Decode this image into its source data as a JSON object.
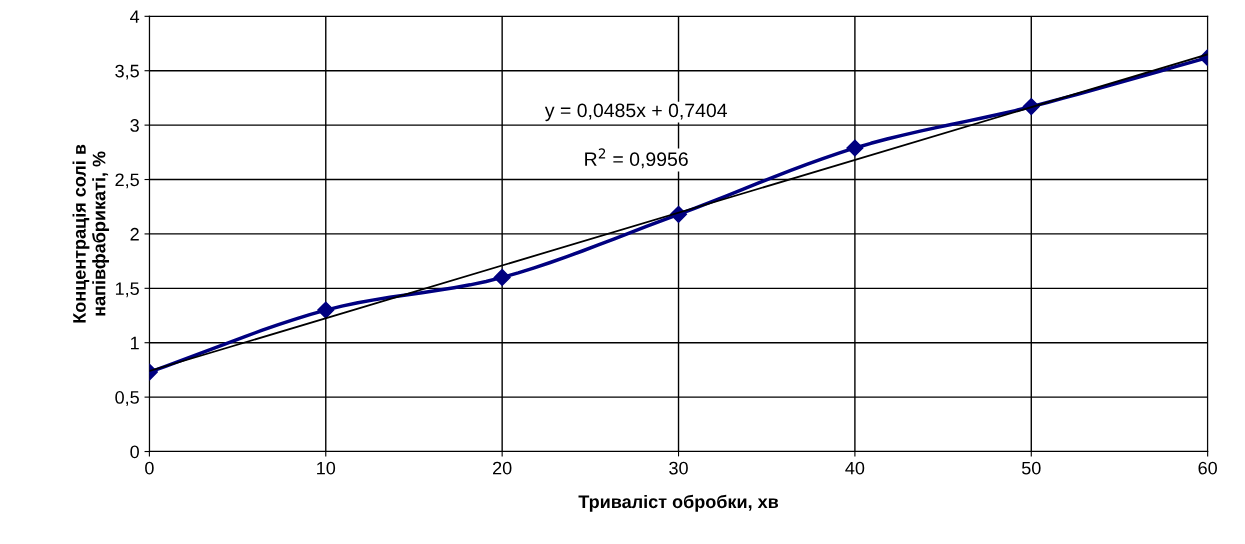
{
  "chart_data": {
    "type": "line",
    "xlabel": "Тривалiст обробки, хв",
    "ylabel": "Концентрація солі в\nнапівфабрикаті, %",
    "series": [
      {
        "color": "#000080",
        "marker": "diamond",
        "x": [
          0,
          10,
          20,
          30,
          40,
          50,
          60
        ],
        "values": [
          0.73,
          1.3,
          1.6,
          2.18,
          2.79,
          3.17,
          3.62
        ]
      },
      {
        "color": "#000000",
        "marker": "none",
        "x": [
          0,
          60
        ],
        "values": [
          0.74,
          3.65
        ]
      }
    ],
    "annotations": [
      "y = 0,0485x + 0,7404",
      "R$^{2}$ = 0,9956"
    ],
    "xlim": [
      0,
      60
    ],
    "xticks": [
      0,
      10,
      20,
      30,
      40,
      50,
      60
    ],
    "ylim": [
      0,
      4
    ],
    "yticks": [
      0,
      {
        "value": 0.5,
        "label": "0,5"
      },
      1,
      {
        "value": 1.5,
        "label": "1,5"
      },
      2,
      {
        "value": 2.5,
        "label": "2,5"
      },
      3,
      {
        "value": 3.5,
        "label": "3,5"
      },
      4
    ],
    "grid": true,
    "legend": false
  }
}
